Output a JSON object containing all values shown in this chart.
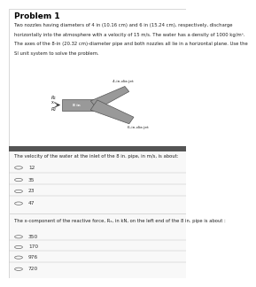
{
  "title": "Problem 1",
  "problem_text_lines": [
    "Two nozzles having diameters of 4 in (10.16 cm) and 6 in (15.24 cm), respectively, discharge",
    "horizontally into the atmosphere with a velocity of 15 m/s. The water has a density of 1000 kg/m³.",
    "The axes of the 8-in (20.32 cm)-diameter pipe and both nozzles all lie in a horizontal plane. Use the",
    "SI unit system to solve the problem."
  ],
  "diagram_labels": {
    "r1": "R₁",
    "x": "x",
    "r2": "R₂",
    "label_4in": "4-in-dia jet",
    "label_8in": "8 in",
    "label_6in": "6-in-dia jet"
  },
  "q1_text": "The velocity of the water at the inlet of the 8 in. pipe, in m/s, is about:",
  "q1_options": [
    "12",
    "35",
    "23",
    "47"
  ],
  "q2_text": "The x-component of the reactive force, Rₓ, in kN, on the left end of the 8 in. pipe is about :",
  "q2_options": [
    "350",
    "170",
    "976",
    "720"
  ],
  "bg_color": "#ffffff",
  "panel_bg": "#f8f8f8",
  "header_bar_color": "#555555",
  "border_color": "#bbbbbb",
  "divider_color": "#888888",
  "radio_color": "#666666",
  "title_color": "#000000",
  "text_color": "#222222",
  "option_color": "#333333",
  "pipe_color": "#999999",
  "pipe_edge": "#555555",
  "title_fontsize": 6.5,
  "body_fontsize": 3.8,
  "option_fontsize": 4.2,
  "diag_label_fontsize": 3.2
}
